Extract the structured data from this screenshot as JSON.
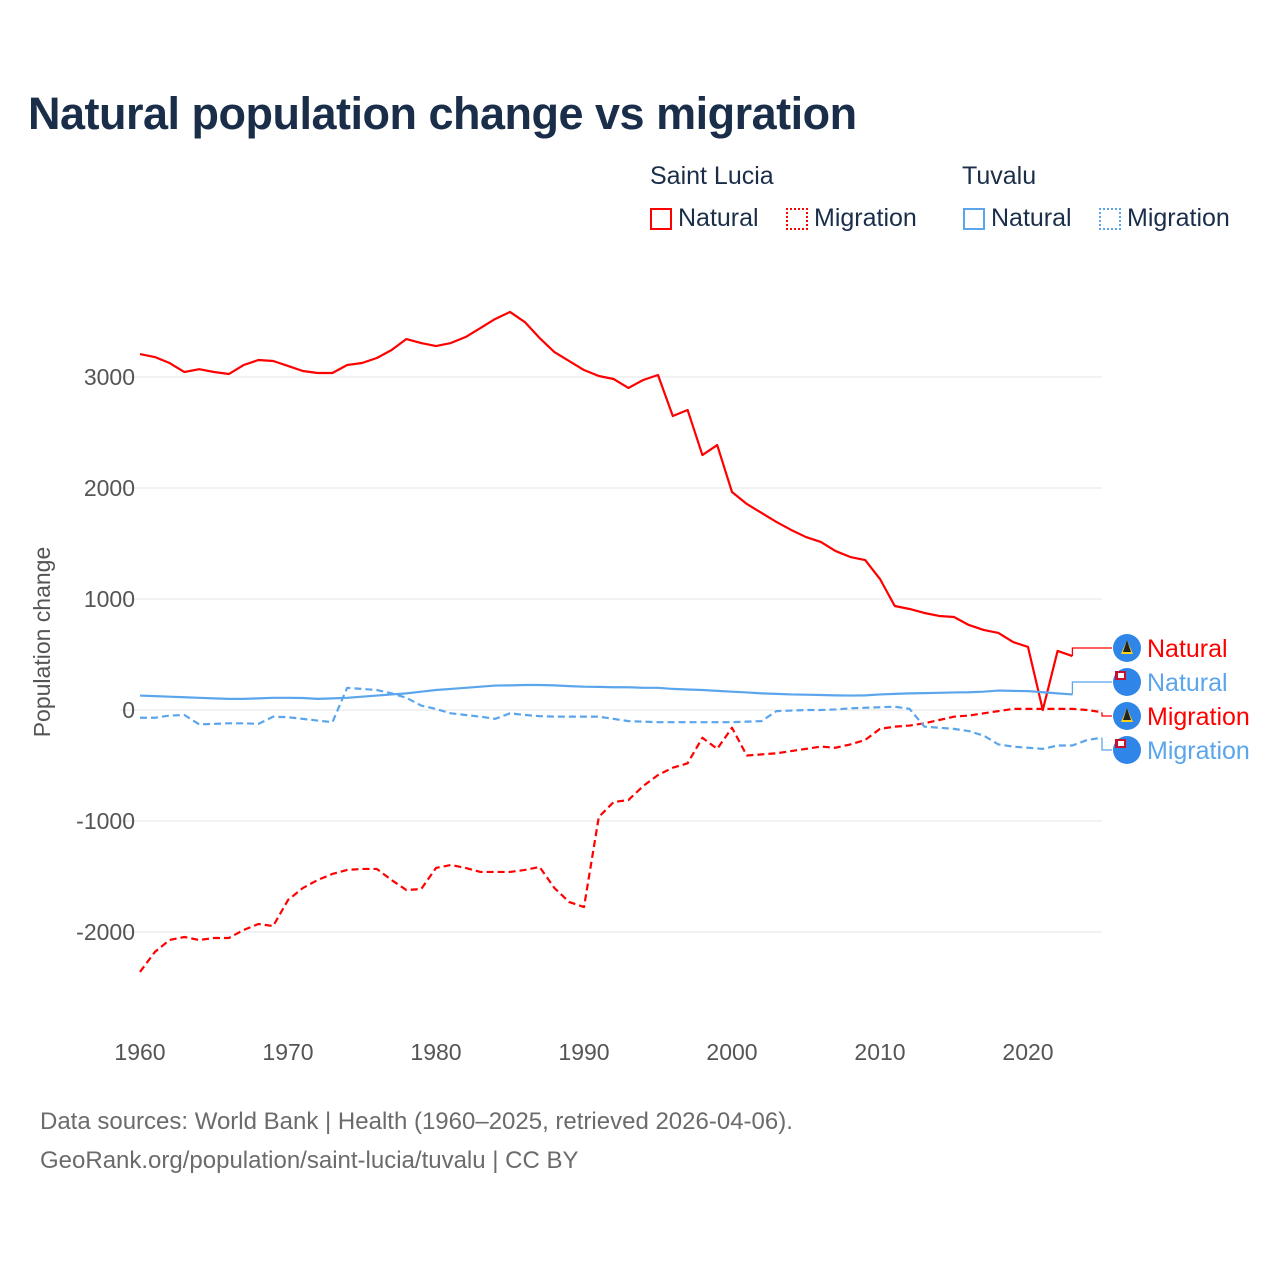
{
  "title": "Natural population change vs migration",
  "legend": {
    "groups": [
      {
        "name": "Saint Lucia",
        "color": "#ff0000",
        "items": [
          "Natural",
          "Migration"
        ]
      },
      {
        "name": "Tuvalu",
        "color": "#5aa5ec",
        "items": [
          "Natural",
          "Migration"
        ]
      }
    ]
  },
  "footer": {
    "line1": "Data sources: World Bank | Health (1960–2025, retrieved 2026-04-06).",
    "line2": "GeoRank.org/population/saint-lucia/tuvalu | CC BY"
  },
  "chart_data": {
    "type": "line",
    "title": "Natural population change vs migration",
    "xlabel": "",
    "ylabel": "Population change",
    "xlim": [
      1960,
      2025
    ],
    "ylim": [
      -2600,
      3900
    ],
    "x_ticks": [
      1960,
      1970,
      1980,
      1990,
      2000,
      2010,
      2020
    ],
    "y_ticks": [
      -2000,
      -1000,
      0,
      1000,
      2000,
      3000
    ],
    "grid": true,
    "legend_placement": "top-right",
    "series": [
      {
        "name": "Saint Lucia Natural",
        "label": "Natural",
        "color": "#ff0000",
        "dash": false,
        "start_year": 1960,
        "values": [
          3207,
          3180,
          3126,
          3045,
          3070,
          3045,
          3027,
          3108,
          3153,
          3144,
          3100,
          3054,
          3036,
          3036,
          3108,
          3126,
          3171,
          3243,
          3342,
          3306,
          3279,
          3306,
          3360,
          3441,
          3523,
          3586,
          3495,
          3351,
          3225,
          3144,
          3063,
          3009,
          2982,
          2901,
          2973,
          3018,
          2649,
          2703,
          2297,
          2387,
          1964,
          1856,
          1775,
          1694,
          1622,
          1558,
          1514,
          1432,
          1378,
          1351,
          1180,
          937,
          910,
          874,
          847,
          838,
          766,
          721,
          694,
          612,
          568,
          0,
          532,
          486
        ]
      },
      {
        "name": "Tuvalu Natural",
        "label": "Natural",
        "color": "#5aa5ec",
        "dash": false,
        "start_year": 1960,
        "values": [
          130,
          125,
          120,
          115,
          110,
          105,
          100,
          100,
          105,
          110,
          110,
          108,
          100,
          105,
          110,
          120,
          130,
          140,
          150,
          165,
          180,
          190,
          200,
          210,
          220,
          222,
          225,
          225,
          222,
          215,
          210,
          208,
          205,
          205,
          200,
          200,
          190,
          185,
          180,
          172,
          165,
          158,
          150,
          145,
          140,
          138,
          135,
          132,
          130,
          132,
          140,
          145,
          150,
          152,
          155,
          158,
          160,
          165,
          175,
          172,
          170,
          160,
          150,
          140
        ]
      },
      {
        "name": "Saint Lucia Migration",
        "label": "Migration",
        "color": "#ff0000",
        "dash": true,
        "start_year": 1960,
        "values": [
          -2360,
          -2180,
          -2072,
          -2045,
          -2072,
          -2054,
          -2054,
          -1982,
          -1928,
          -1946,
          -1712,
          -1604,
          -1532,
          -1477,
          -1441,
          -1432,
          -1432,
          -1532,
          -1622,
          -1613,
          -1423,
          -1396,
          -1423,
          -1459,
          -1459,
          -1459,
          -1441,
          -1414,
          -1604,
          -1730,
          -1775,
          -964,
          -829,
          -811,
          -685,
          -586,
          -520,
          -480,
          -250,
          -350,
          -160,
          -410,
          -400,
          -390,
          -370,
          -350,
          -330,
          -340,
          -310,
          -270,
          -170,
          -150,
          -140,
          -120,
          -90,
          -60,
          -50,
          -30,
          -10,
          10,
          10,
          10,
          10,
          10,
          0,
          -20
        ]
      },
      {
        "name": "Tuvalu Migration",
        "label": "Migration",
        "color": "#5aa5ec",
        "dash": true,
        "start_year": 1960,
        "values": [
          -70,
          -70,
          -50,
          -45,
          -130,
          -125,
          -120,
          -120,
          -125,
          -60,
          -65,
          -80,
          -95,
          -110,
          200,
          190,
          180,
          150,
          110,
          40,
          10,
          -30,
          -45,
          -60,
          -80,
          -30,
          -45,
          -55,
          -60,
          -60,
          -60,
          -60,
          -80,
          -100,
          -105,
          -110,
          -110,
          -110,
          -110,
          -110,
          -110,
          -105,
          -100,
          -10,
          -5,
          0,
          0,
          5,
          15,
          20,
          25,
          30,
          10,
          -150,
          -160,
          -170,
          -190,
          -230,
          -310,
          -330,
          -340,
          -350,
          -320,
          -320,
          -270,
          -250
        ]
      }
    ]
  }
}
